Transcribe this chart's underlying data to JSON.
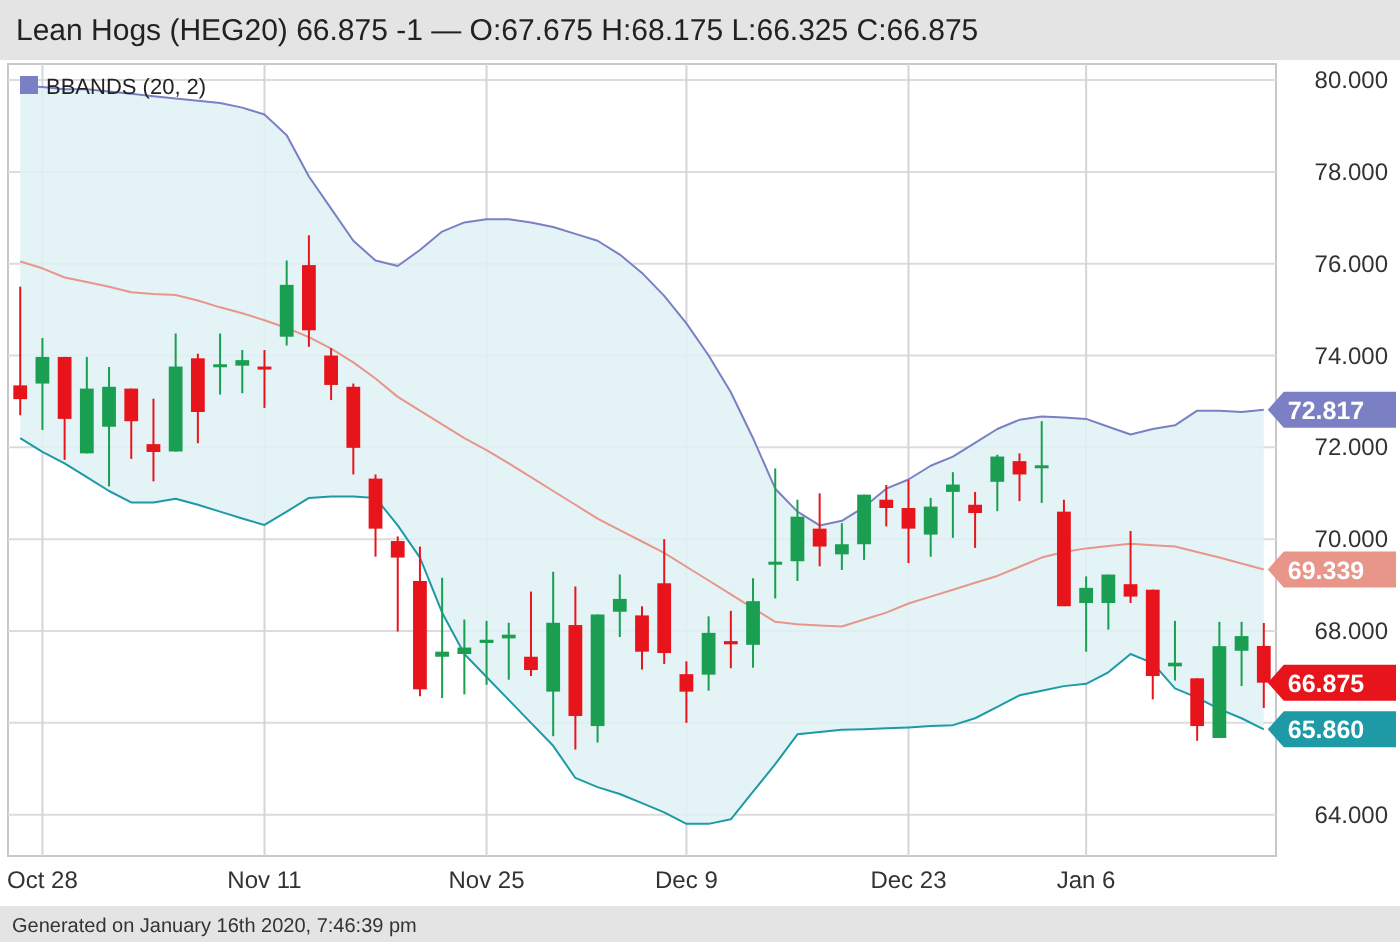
{
  "chart_data": {
    "type": "candlestick",
    "title": "Lean Hogs (HEG20) 66.875 -1 — O:67.675 H:68.175 L:66.325 C:66.875",
    "categories": [
      null,
      "Oct 28",
      null,
      null,
      null,
      null,
      null,
      null,
      null,
      null,
      null,
      "Nov 11",
      null,
      null,
      null,
      null,
      null,
      null,
      null,
      null,
      null,
      "Nov 25",
      null,
      null,
      null,
      null,
      null,
      null,
      null,
      null,
      "Dec 9",
      null,
      null,
      null,
      null,
      null,
      null,
      null,
      null,
      null,
      "Dec 23",
      null,
      null,
      null,
      null,
      null,
      null,
      null,
      "Jan 6",
      null,
      null,
      null,
      null,
      null,
      null,
      null,
      null
    ],
    "ohlc": [
      [
        73.35,
        75.5,
        72.7,
        73.05
      ],
      [
        73.39,
        74.38,
        72.38,
        73.97
      ],
      [
        73.97,
        73.97,
        71.73,
        72.62
      ],
      [
        71.87,
        73.97,
        71.87,
        73.28
      ],
      [
        72.45,
        73.75,
        71.15,
        73.32
      ],
      [
        73.28,
        73.28,
        71.75,
        72.57
      ],
      [
        72.07,
        73.06,
        71.26,
        71.9
      ],
      [
        71.91,
        74.48,
        71.91,
        73.76
      ],
      [
        73.94,
        74.04,
        72.09,
        72.77
      ],
      [
        73.76,
        74.48,
        73.15,
        73.81
      ],
      [
        73.78,
        74.12,
        73.18,
        73.9
      ],
      [
        73.76,
        74.12,
        72.86,
        73.71
      ],
      [
        74.41,
        76.07,
        74.22,
        75.54
      ],
      [
        75.97,
        76.62,
        74.19,
        74.55
      ],
      [
        74.0,
        74.16,
        73.03,
        73.36
      ],
      [
        73.32,
        73.39,
        71.41,
        71.99
      ],
      [
        71.32,
        71.41,
        69.62,
        70.23
      ],
      [
        69.96,
        70.06,
        67.99,
        69.6
      ],
      [
        69.09,
        69.84,
        66.58,
        66.73
      ],
      [
        67.44,
        69.16,
        66.54,
        67.55
      ],
      [
        67.5,
        68.25,
        66.62,
        67.64
      ],
      [
        67.74,
        68.22,
        66.83,
        67.81
      ],
      [
        67.84,
        68.18,
        66.94,
        67.92
      ],
      [
        67.44,
        68.86,
        67.02,
        67.15
      ],
      [
        66.68,
        69.29,
        65.71,
        68.18
      ],
      [
        68.13,
        68.97,
        65.42,
        66.15
      ],
      [
        65.93,
        68.36,
        65.57,
        68.36
      ],
      [
        68.42,
        69.23,
        67.87,
        68.7
      ],
      [
        68.34,
        68.54,
        67.16,
        67.55
      ],
      [
        69.04,
        70.0,
        67.28,
        67.52
      ],
      [
        67.06,
        67.34,
        66.0,
        66.68
      ],
      [
        67.05,
        68.32,
        66.7,
        67.96
      ],
      [
        67.78,
        68.44,
        67.19,
        67.71
      ],
      [
        67.7,
        69.15,
        67.2,
        68.65
      ],
      [
        69.49,
        71.54,
        68.71,
        69.51
      ],
      [
        69.52,
        70.86,
        69.09,
        70.49
      ],
      [
        70.23,
        71.0,
        69.41,
        69.84
      ],
      [
        69.67,
        70.35,
        69.33,
        69.89
      ],
      [
        69.89,
        70.97,
        69.55,
        70.97
      ],
      [
        70.86,
        71.18,
        70.28,
        70.68
      ],
      [
        70.68,
        71.29,
        69.48,
        70.23
      ],
      [
        70.1,
        70.9,
        69.62,
        70.71
      ],
      [
        71.03,
        71.46,
        70.03,
        71.19
      ],
      [
        70.75,
        71.03,
        69.81,
        70.57
      ],
      [
        71.25,
        71.84,
        70.61,
        71.8
      ],
      [
        71.7,
        71.87,
        70.83,
        71.41
      ],
      [
        71.55,
        72.57,
        70.79,
        71.61
      ],
      [
        70.6,
        70.86,
        68.54,
        68.54
      ],
      [
        68.61,
        69.19,
        67.55,
        68.94
      ],
      [
        68.61,
        69.23,
        68.03,
        69.23
      ],
      [
        69.02,
        70.18,
        68.61,
        68.75
      ],
      [
        68.9,
        68.9,
        66.51,
        67.02
      ],
      [
        67.23,
        68.22,
        66.92,
        67.31
      ],
      [
        66.97,
        66.97,
        65.61,
        65.93
      ],
      [
        65.67,
        68.2,
        65.67,
        67.67
      ],
      [
        67.57,
        68.2,
        66.8,
        67.89
      ],
      [
        67.675,
        68.175,
        66.325,
        66.875
      ]
    ],
    "series": [
      {
        "name": "BBANDS (20, 2)",
        "type": "line",
        "color": "#7b7fc4",
        "values": [
          79.86,
          79.85,
          79.8,
          79.8,
          79.75,
          79.7,
          79.65,
          79.6,
          79.55,
          79.5,
          79.4,
          79.25,
          78.8,
          77.9,
          77.2,
          76.5,
          76.07,
          75.95,
          76.3,
          76.7,
          76.9,
          76.97,
          76.97,
          76.9,
          76.8,
          76.65,
          76.5,
          76.2,
          75.8,
          75.3,
          74.7,
          74.0,
          73.2,
          72.2,
          71.1,
          70.6,
          70.3,
          70.4,
          70.7,
          71.1,
          71.3,
          71.6,
          71.8,
          72.1,
          72.4,
          72.6,
          72.67,
          72.65,
          72.62,
          72.45,
          72.28,
          72.4,
          72.48,
          72.8,
          72.8,
          72.77,
          72.817
        ],
        "value_labels": [
          null,
          null,
          null,
          null,
          null,
          null,
          null,
          null,
          null,
          null,
          null,
          null,
          null,
          null,
          null,
          null,
          null,
          null,
          null,
          null,
          null,
          null,
          null,
          null,
          null,
          null,
          null,
          null,
          null,
          null,
          null,
          null,
          null,
          null,
          null,
          null,
          null,
          null,
          null,
          null,
          null,
          null,
          null,
          null,
          null,
          null,
          null,
          null,
          null,
          null,
          null,
          null,
          null,
          null,
          null,
          null,
          "72.817"
        ]
      },
      {
        "type": "line",
        "color": "#e8958a",
        "value_labels": [
          null,
          null,
          null,
          null,
          null,
          null,
          null,
          null,
          null,
          null,
          null,
          null,
          null,
          null,
          null,
          null,
          null,
          null,
          null,
          null,
          null,
          null,
          null,
          null,
          null,
          null,
          null,
          null,
          null,
          null,
          null,
          null,
          null,
          null,
          null,
          null,
          null,
          null,
          null,
          null,
          null,
          null,
          null,
          null,
          null,
          null,
          null,
          null,
          null,
          null,
          null,
          null,
          null,
          null,
          null,
          null,
          "69.339"
        ],
        "values": [
          76.05,
          75.9,
          75.7,
          75.6,
          75.5,
          75.38,
          75.34,
          75.32,
          75.2,
          75.05,
          74.92,
          74.77,
          74.6,
          74.4,
          74.15,
          73.85,
          73.5,
          73.1,
          72.8,
          72.5,
          72.2,
          71.94,
          71.65,
          71.35,
          71.05,
          70.75,
          70.45,
          70.2,
          69.95,
          69.7,
          69.4,
          69.1,
          68.8,
          68.5,
          68.2,
          68.15,
          68.12,
          68.1,
          68.25,
          68.4,
          68.6,
          68.75,
          68.9,
          69.05,
          69.2,
          69.4,
          69.6,
          69.72,
          69.8,
          69.85,
          69.9,
          69.87,
          69.84,
          69.72,
          69.6,
          69.47,
          69.339
        ],
        "upper": [
          79.86,
          79.85,
          79.8,
          79.8,
          79.75,
          79.7,
          79.65,
          79.6,
          79.55,
          79.5,
          79.4,
          79.25,
          78.8,
          77.9,
          77.2,
          76.5,
          76.07,
          75.95,
          76.3,
          76.7,
          76.9,
          76.97,
          76.97,
          76.9,
          76.8,
          76.65,
          76.5,
          76.2,
          75.8,
          75.3,
          74.7,
          74.0,
          73.2,
          72.2,
          71.1,
          70.6,
          70.3,
          70.4,
          70.7,
          71.1,
          71.3,
          71.6,
          71.8,
          72.1,
          72.4,
          72.6,
          72.67,
          72.65,
          72.62,
          72.45,
          72.28,
          72.4,
          72.48,
          72.8,
          72.8,
          72.77,
          72.817
        ],
        "lower": [
          72.2,
          71.9,
          71.65,
          71.35,
          71.05,
          70.8,
          70.8,
          70.88,
          70.75,
          70.6,
          70.45,
          70.31,
          70.6,
          70.9,
          70.93,
          70.93,
          70.9,
          70.3,
          69.6,
          68.4,
          67.5,
          67.0,
          66.5,
          66.0,
          65.5,
          64.8,
          64.6,
          64.45,
          64.25,
          64.05,
          63.8,
          63.8,
          63.9,
          64.5,
          65.1,
          65.75,
          65.8,
          65.85,
          65.86,
          65.88,
          65.9,
          65.93,
          65.95,
          66.1,
          66.35,
          66.6,
          66.7,
          66.8,
          66.85,
          67.1,
          67.5,
          67.3,
          66.75,
          66.55,
          66.3,
          66.1,
          65.86
        ]
      },
      {
        "type": "line",
        "color": "#1d9aa6",
        "values": [
          72.2,
          71.9,
          71.65,
          71.35,
          71.05,
          70.8,
          70.8,
          70.88,
          70.75,
          70.6,
          70.45,
          70.31,
          70.6,
          70.9,
          70.93,
          70.93,
          70.9,
          70.3,
          69.6,
          68.4,
          67.5,
          67.0,
          66.5,
          66.0,
          65.5,
          64.8,
          64.6,
          64.45,
          64.25,
          64.05,
          63.8,
          63.8,
          63.9,
          64.5,
          65.1,
          65.75,
          65.8,
          65.85,
          65.86,
          65.88,
          65.9,
          65.93,
          65.95,
          66.1,
          66.35,
          66.6,
          66.7,
          66.8,
          66.85,
          67.1,
          67.5,
          67.3,
          66.75,
          66.55,
          66.3,
          66.1,
          65.86
        ],
        "value_labels": [
          null,
          null,
          null,
          null,
          null,
          null,
          null,
          null,
          null,
          null,
          null,
          null,
          null,
          null,
          null,
          null,
          null,
          null,
          null,
          null,
          null,
          null,
          null,
          null,
          null,
          null,
          null,
          null,
          null,
          null,
          null,
          null,
          null,
          null,
          null,
          null,
          null,
          null,
          null,
          null,
          null,
          null,
          null,
          null,
          null,
          null,
          null,
          null,
          null,
          null,
          null,
          null,
          null,
          null,
          null,
          null,
          "65.860"
        ]
      }
    ],
    "ylim": [
      63.1,
      80.35
    ],
    "yticks": [
      {
        "value": 64,
        "label": "64.000"
      },
      {
        "value": 66,
        "label": null
      },
      {
        "value": 68,
        "label": "68.000"
      },
      {
        "value": 70,
        "label": "70.000"
      },
      {
        "value": 72,
        "label": "72.000"
      },
      {
        "value": 74,
        "label": "74.000"
      },
      {
        "value": 76,
        "label": "76.000"
      },
      {
        "value": 78,
        "label": "78.000"
      },
      {
        "value": 80,
        "label": "80.000"
      }
    ],
    "grid": true,
    "legend": "top left",
    "annotations": [
      "66.875",
      "Generated on January 16th 2020, 7:46:39 pm"
    ]
  }
}
